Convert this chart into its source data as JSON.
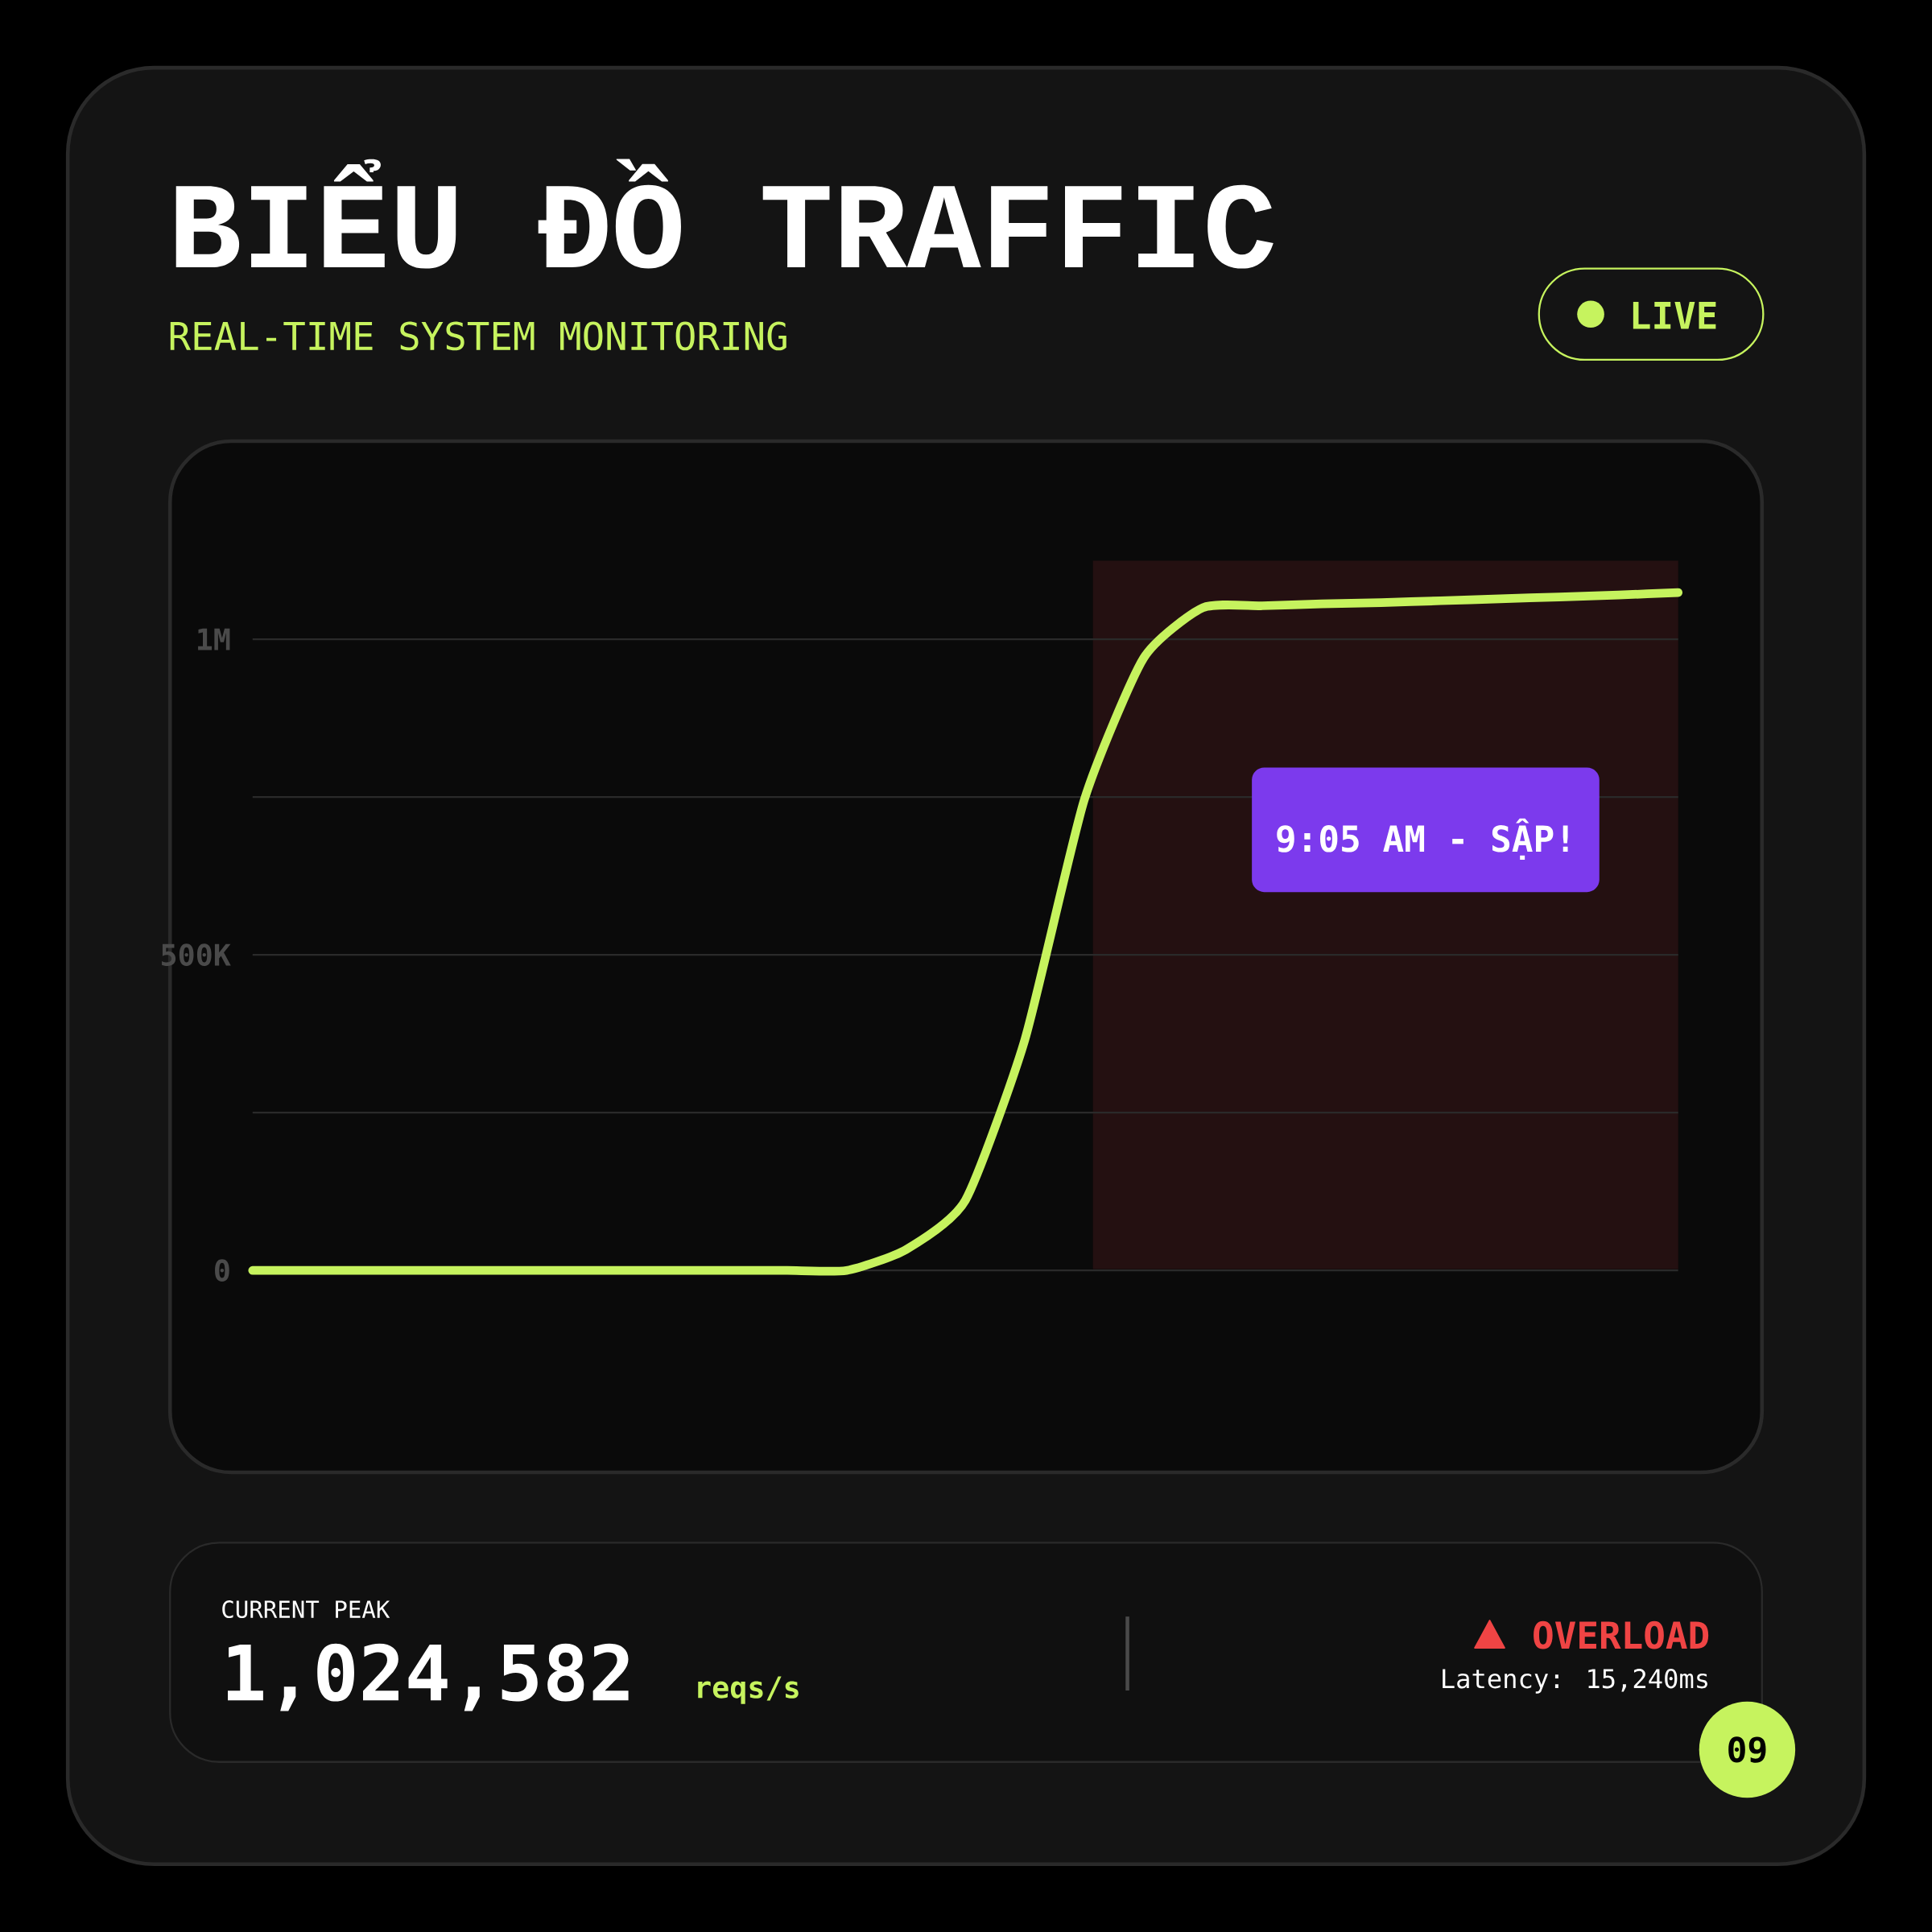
{
  "chart_data": {
    "type": "line",
    "title": "BIỂU ĐỒ TRAFFIC",
    "subtitle": "REAL-TIME SYSTEM MONITORING",
    "categories": [
      null,
      null,
      null,
      null,
      null,
      null,
      null,
      null,
      null,
      null,
      null,
      null,
      null,
      null,
      null,
      null,
      null,
      null,
      null,
      null,
      null,
      null,
      null,
      null,
      null
    ],
    "series": [
      {
        "color": "#c6f35e",
        "values": [
          0,
          0,
          0,
          0,
          0,
          0,
          0,
          0,
          0,
          0,
          0,
          33000,
          111000,
          365000,
          745000,
          970000,
          1050000,
          1053000,
          1056000,
          1058000,
          1061000,
          1064000,
          1067000,
          1070000,
          1074000
        ]
      }
    ],
    "ylim": [
      -320000,
      1310000
    ],
    "yticks": [
      0,
      {
        "value": 250000,
        "label": null
      },
      {
        "value": 500000,
        "label": "500K"
      },
      {
        "value": 750000,
        "label": null
      },
      {
        "value": 1000000,
        "label": "1M"
      }
    ],
    "grid": "y",
    "tick_labels": "y",
    "marker": "none",
    "line_style": "solid",
    "annotations": [
      "LIVE",
      "CURRENT PEAK",
      "1,024,582",
      "reqs/s",
      "OVERLOAD",
      "Latency: 15,240ms",
      "09",
      "9:05 AM - SẬP!"
    ]
  }
}
